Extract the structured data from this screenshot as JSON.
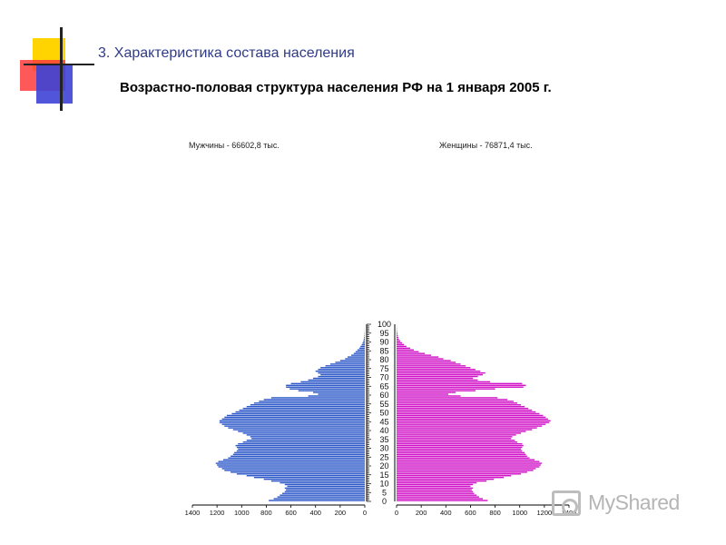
{
  "slide": {
    "section_title": "3. Характеристика состава населения",
    "main_title": "Возрастно-половая структура населения РФ на 1 января 2005 г."
  },
  "watermark": {
    "text": "MyShared",
    "icon": "projector-icon"
  },
  "colors": {
    "male": "#2a56c8",
    "female": "#d010c6",
    "deco_yellow": "#ffd400",
    "deco_red": "#ff3b3b",
    "deco_blue": "#3d43d6"
  },
  "chart_data": {
    "type": "bar",
    "subtype": "population-pyramid",
    "male_label": "Мужчины - 66602,8 тыс.",
    "female_label": "Женщины - 76871,4 тыс.",
    "age_ticks": [
      "0",
      "5",
      "10",
      "15",
      "20",
      "25",
      "30",
      "35",
      "40",
      "45",
      "50",
      "55",
      "60",
      "65",
      "70",
      "75",
      "80",
      "85",
      "90",
      "95",
      "100"
    ],
    "x_ticks_male": [
      "1400",
      "1200",
      "1000",
      "800",
      "600",
      "400",
      "200",
      "0"
    ],
    "x_ticks_female": [
      "0",
      "200",
      "400",
      "600",
      "800",
      "1000",
      "1200",
      "1400"
    ],
    "xlim": [
      0,
      1400
    ],
    "ages": [
      0,
      1,
      2,
      3,
      4,
      5,
      6,
      7,
      8,
      9,
      10,
      11,
      12,
      13,
      14,
      15,
      16,
      17,
      18,
      19,
      20,
      21,
      22,
      23,
      24,
      25,
      26,
      27,
      28,
      29,
      30,
      31,
      32,
      33,
      34,
      35,
      36,
      37,
      38,
      39,
      40,
      41,
      42,
      43,
      44,
      45,
      46,
      47,
      48,
      49,
      50,
      51,
      52,
      53,
      54,
      55,
      56,
      57,
      58,
      59,
      60,
      61,
      62,
      63,
      64,
      65,
      66,
      67,
      68,
      69,
      70,
      71,
      72,
      73,
      74,
      75,
      76,
      77,
      78,
      79,
      80,
      81,
      82,
      83,
      84,
      85,
      86,
      87,
      88,
      89,
      90,
      91,
      92,
      93,
      94,
      95,
      96,
      97,
      98,
      99
    ],
    "series": [
      {
        "name": "Мужчины",
        "values": [
          780,
          740,
          710,
          690,
          670,
          650,
          640,
          650,
          630,
          650,
          690,
          760,
          820,
          900,
          960,
          1040,
          1090,
          1140,
          1160,
          1190,
          1200,
          1210,
          1190,
          1150,
          1110,
          1090,
          1070,
          1060,
          1040,
          1030,
          1040,
          1050,
          1030,
          990,
          960,
          920,
          930,
          960,
          990,
          1030,
          1070,
          1110,
          1140,
          1160,
          1180,
          1180,
          1160,
          1140,
          1120,
          1080,
          1050,
          1020,
          990,
          960,
          930,
          900,
          860,
          820,
          760,
          460,
          380,
          420,
          540,
          610,
          640,
          640,
          600,
          520,
          460,
          420,
          380,
          360,
          380,
          400,
          380,
          360,
          320,
          280,
          240,
          200,
          160,
          140,
          110,
          90,
          75,
          60,
          45,
          35,
          25,
          18,
          12,
          9,
          6,
          4,
          3,
          2,
          1,
          1,
          0,
          0
        ]
      },
      {
        "name": "Женщины",
        "values": [
          740,
          700,
          670,
          650,
          630,
          620,
          610,
          620,
          600,
          620,
          650,
          730,
          790,
          870,
          930,
          1010,
          1060,
          1110,
          1130,
          1160,
          1170,
          1180,
          1160,
          1120,
          1080,
          1060,
          1050,
          1040,
          1020,
          1010,
          1020,
          1030,
          1020,
          980,
          960,
          930,
          940,
          970,
          1010,
          1050,
          1100,
          1140,
          1180,
          1210,
          1240,
          1250,
          1230,
          1210,
          1190,
          1160,
          1130,
          1100,
          1070,
          1040,
          1010,
          980,
          950,
          900,
          820,
          520,
          420,
          480,
          640,
          800,
          1030,
          1050,
          1020,
          760,
          660,
          620,
          660,
          700,
          720,
          680,
          640,
          600,
          560,
          520,
          480,
          440,
          380,
          340,
          280,
          230,
          180,
          140,
          110,
          80,
          60,
          45,
          30,
          20,
          14,
          10,
          7,
          5,
          3,
          2,
          1,
          1
        ]
      }
    ]
  }
}
